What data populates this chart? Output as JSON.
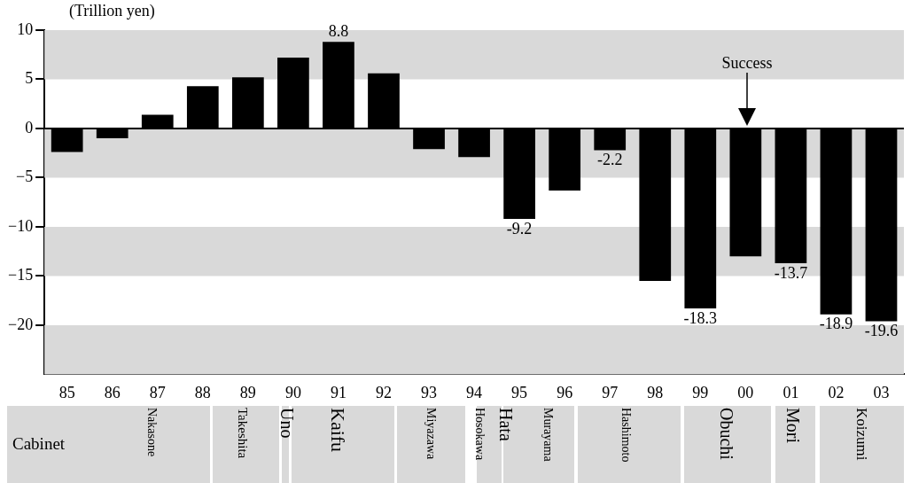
{
  "chart_data": {
    "type": "bar",
    "ylabel": "(Trillion yen)",
    "categories": [
      "85",
      "86",
      "87",
      "88",
      "89",
      "90",
      "91",
      "92",
      "93",
      "94",
      "95",
      "96",
      "97",
      "98",
      "99",
      "00",
      "01",
      "02",
      "03"
    ],
    "values": [
      -2.4,
      -1.0,
      1.4,
      4.3,
      5.2,
      7.2,
      8.8,
      5.6,
      -2.1,
      -2.9,
      -9.2,
      -6.3,
      -2.2,
      -15.5,
      -18.3,
      -13.0,
      -13.7,
      -18.9,
      -19.6
    ],
    "value_labels": [
      null,
      null,
      null,
      null,
      null,
      null,
      "8.8",
      null,
      null,
      null,
      "-9.2",
      null,
      "-2.2",
      null,
      "-18.3",
      null,
      "-13.7",
      "-18.9",
      "-19.6"
    ],
    "color": "#000000",
    "ylim": [
      -25,
      10
    ],
    "yticks": [
      -20,
      -15,
      -10,
      -5,
      0,
      5,
      10
    ],
    "grid": false,
    "bands": [
      {
        "axis": "y",
        "from": 5,
        "to": 10,
        "color": "#d9d9d9"
      },
      {
        "axis": "y",
        "from": -5,
        "to": 0,
        "color": "#d9d9d9"
      },
      {
        "axis": "y",
        "from": -15,
        "to": -10,
        "color": "#d9d9d9"
      },
      {
        "axis": "y",
        "from": -25,
        "to": -20,
        "color": "#d9d9d9"
      }
    ],
    "ref_lines": [
      {
        "axis": "y",
        "value": 0,
        "color": "#000000"
      }
    ],
    "annotations": [
      "Success",
      "Cabinet",
      "Nakasone",
      "Takeshita",
      "Uno",
      "Kaifu",
      "Miyazawa",
      "Hosokawa",
      "Hata",
      "Murayama",
      "Hashimoto",
      "Obuchi",
      "Mori",
      "Koizumi"
    ]
  }
}
